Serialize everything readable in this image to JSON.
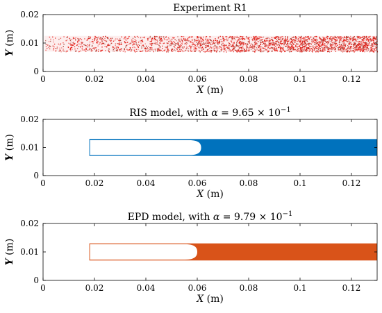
{
  "chart_data": [
    {
      "type": "scatter",
      "title": "Experiment R1",
      "xlabel": "X (m)",
      "ylabel": "Y (m)",
      "xlim": [
        0,
        0.13
      ],
      "ylim": [
        0,
        0.02
      ],
      "xticks": [
        "0",
        "0.02",
        "0.04",
        "0.06",
        "0.08",
        "0.1",
        "0.12"
      ],
      "yticks": [
        "0",
        "0.01",
        "0.02"
      ],
      "grid": false,
      "color": "#e3120b",
      "dark_color": "#9b2b1e",
      "region": {
        "x": [
          0.0,
          0.13
        ],
        "y": [
          0.007,
          0.0125
        ]
      },
      "density_increases_with_x": true
    },
    {
      "type": "area",
      "title_text": "RIS model, with α = 9.65 × 10",
      "title_exponent": "−1",
      "xlabel": "X (m)",
      "ylabel": "Y (m)",
      "xlim": [
        0,
        0.13
      ],
      "ylim": [
        0,
        0.02
      ],
      "xticks": [
        "0",
        "0.02",
        "0.04",
        "0.06",
        "0.08",
        "0.1",
        "0.12"
      ],
      "yticks": [
        "0",
        "0.01",
        "0.02"
      ],
      "grid": false,
      "color": "#0072bd",
      "channel": {
        "x": [
          0.018,
          0.13
        ],
        "y": [
          0.007,
          0.013
        ]
      },
      "void": {
        "x_start": 0.018,
        "x_tip": 0.0615,
        "y": [
          0.0073,
          0.0126
        ]
      }
    },
    {
      "type": "area",
      "title_text": "EPD model, with α = 9.79 × 10",
      "title_exponent": "−1",
      "xlabel": "X (m)",
      "ylabel": "Y (m)",
      "xlim": [
        0,
        0.13
      ],
      "ylim": [
        0,
        0.02
      ],
      "xticks": [
        "0",
        "0.02",
        "0.04",
        "0.06",
        "0.08",
        "0.1",
        "0.12"
      ],
      "yticks": [
        "0",
        "0.01",
        "0.02"
      ],
      "grid": false,
      "color": "#d95319",
      "channel": {
        "x": [
          0.018,
          0.13
        ],
        "y": [
          0.007,
          0.013
        ]
      },
      "void": {
        "x_start": 0.018,
        "x_tip": 0.06,
        "y": [
          0.0073,
          0.0127
        ]
      }
    }
  ]
}
